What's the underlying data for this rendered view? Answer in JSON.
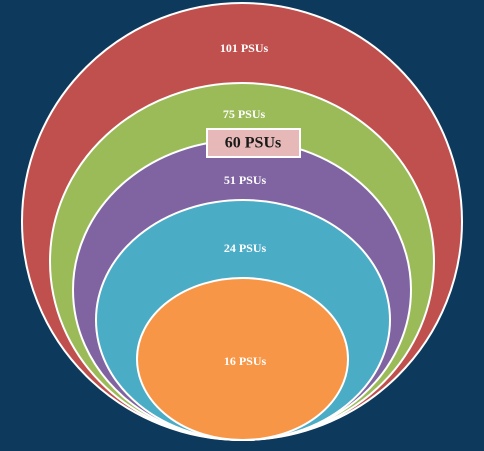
{
  "nodes": [
    {
      "label": "101 PSUs"
    },
    {
      "label": "75 PSUs"
    },
    {
      "label": "60 PSUs"
    },
    {
      "label": "51 PSUs"
    },
    {
      "label": "24 PSUs"
    },
    {
      "label": "16 PSUs"
    }
  ]
}
